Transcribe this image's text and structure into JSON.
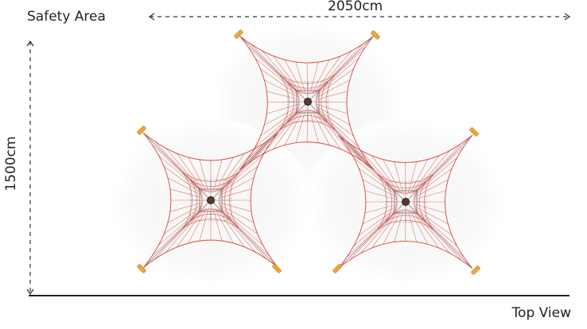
{
  "labels": {
    "safety_area": "Safety Area",
    "width": "2050cm",
    "height": "1500cm",
    "view": "Top View"
  },
  "colors": {
    "net_red": "#d9473f",
    "cable_grey": "#7c7c7c",
    "anchor_orange": "#f0a43a",
    "safety_area_fill": "#f8f8f8",
    "mast": "#5a3a2a",
    "dim_line": "#333333"
  },
  "icons": {
    "anchor": "anchor-post-icon",
    "mast": "center-mast-icon"
  }
}
